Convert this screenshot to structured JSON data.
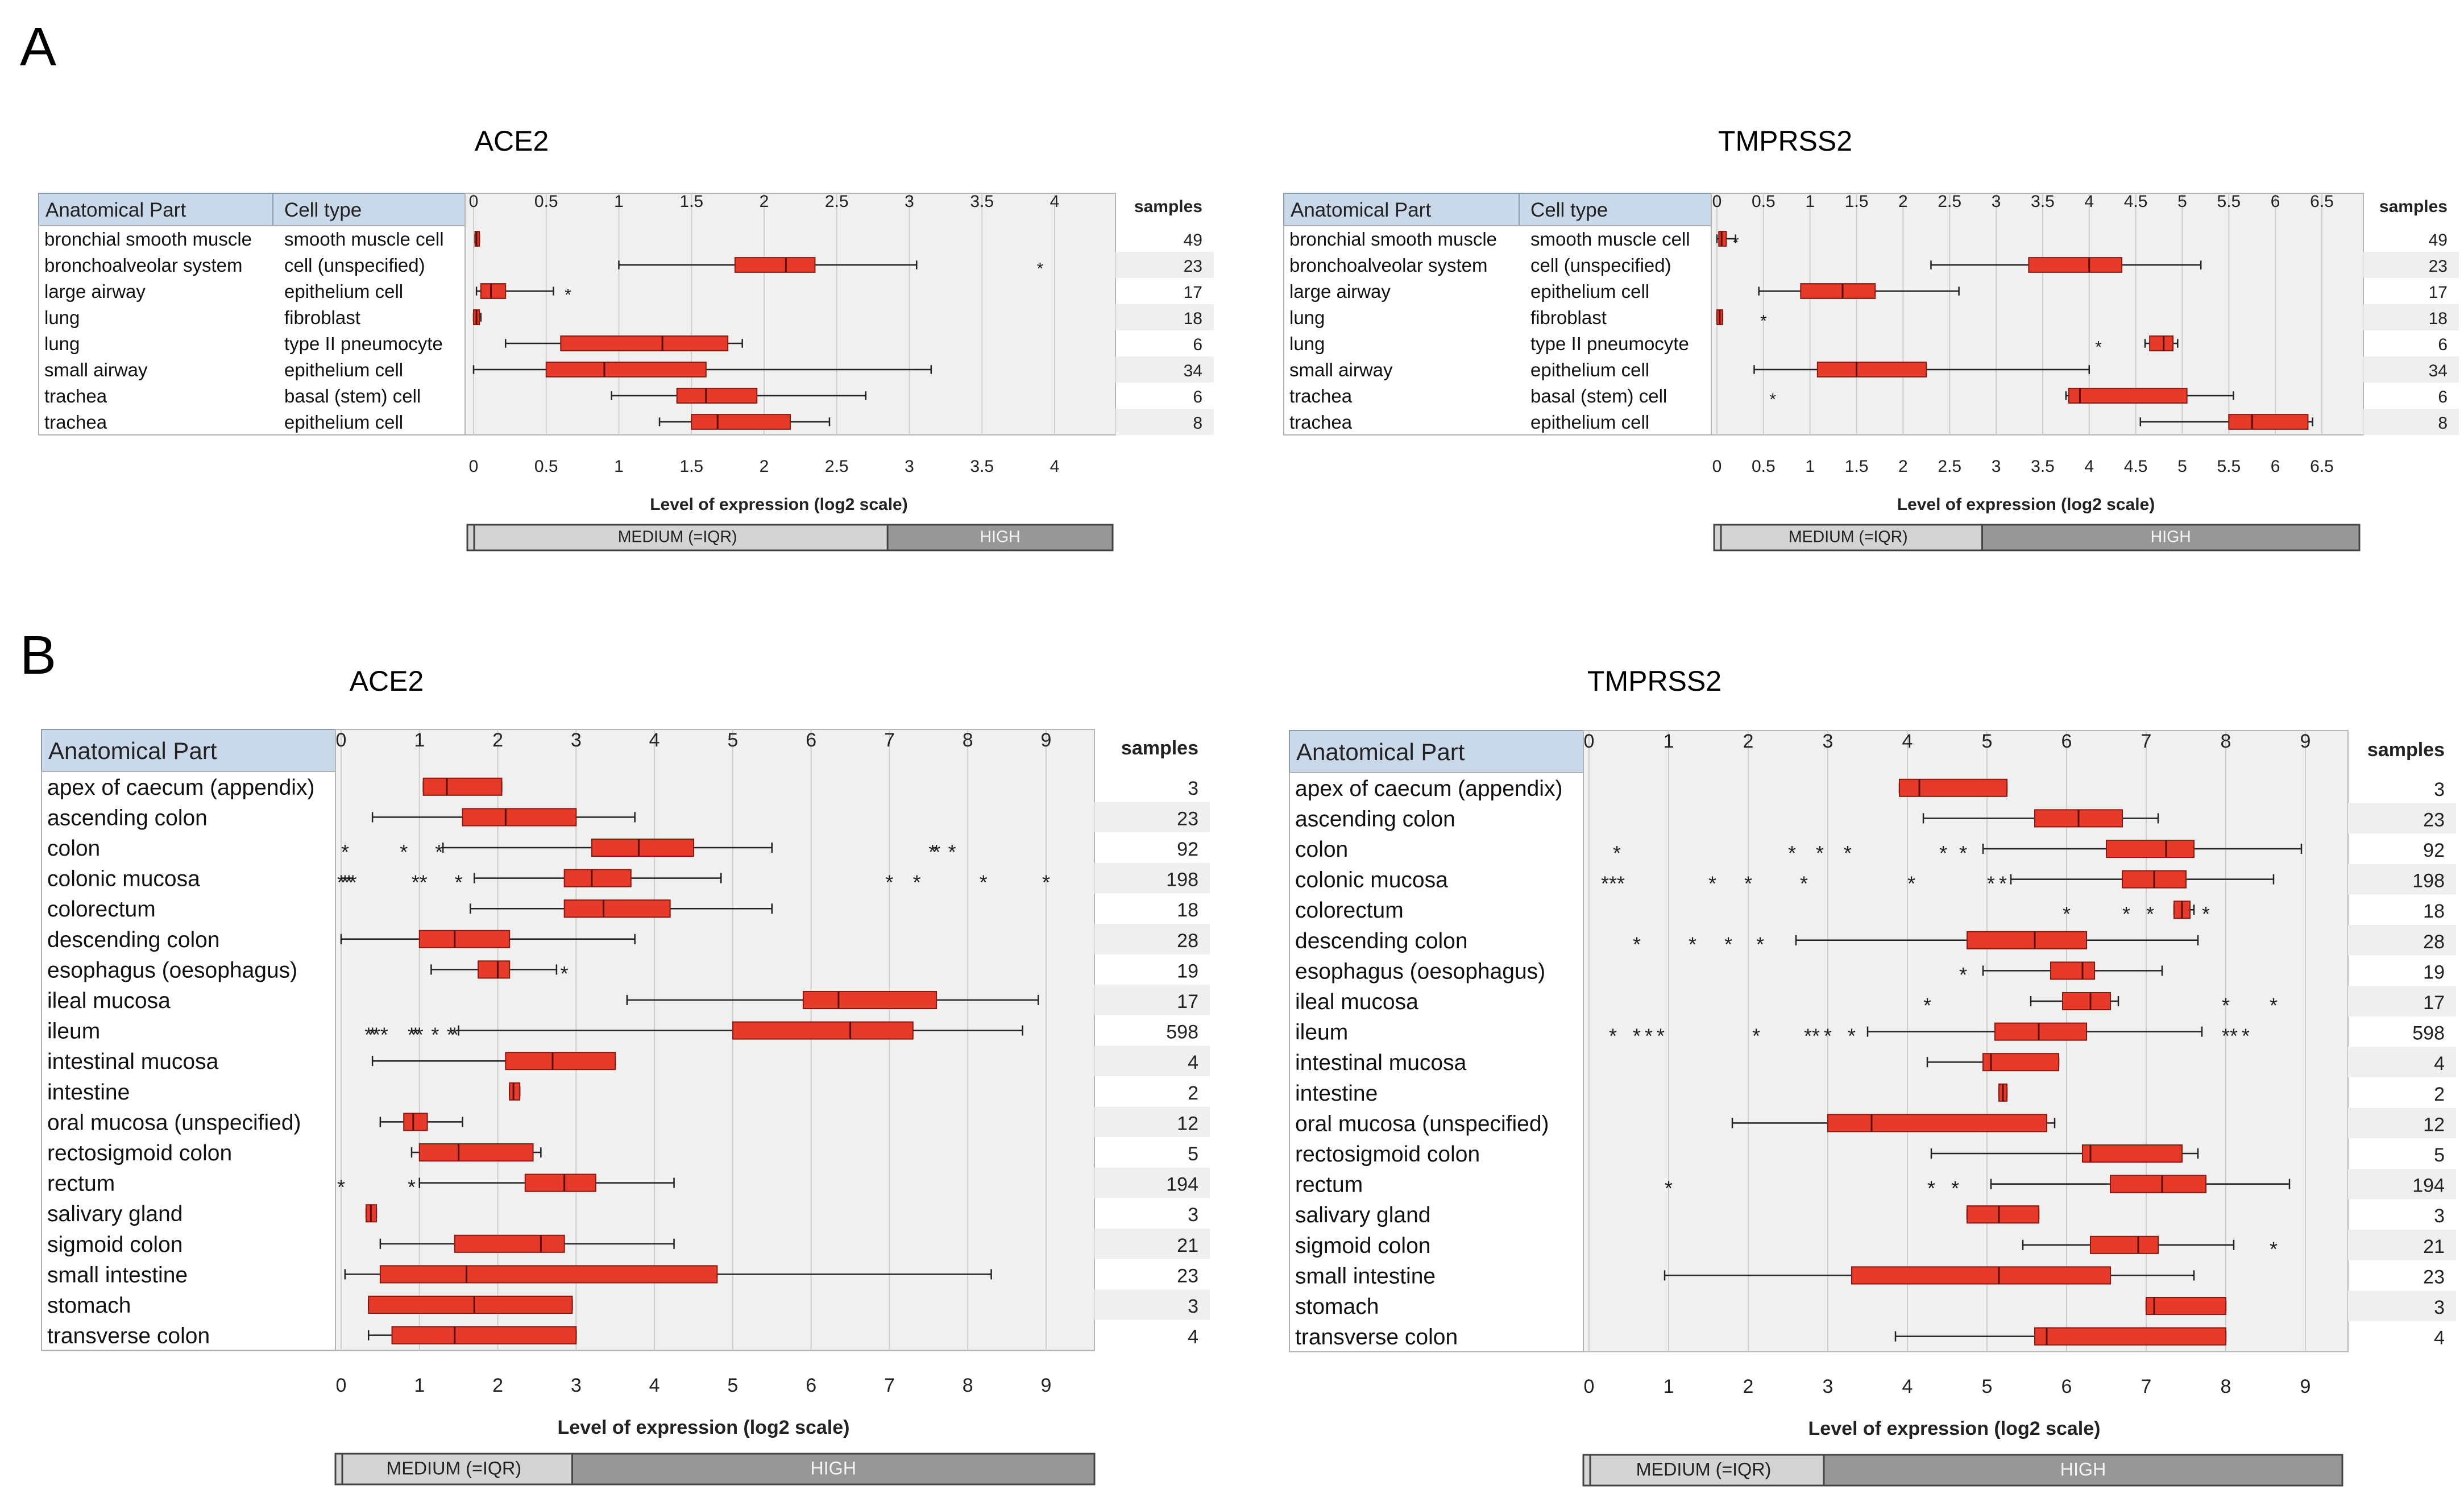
{
  "panel_labels": [
    "A",
    "B"
  ],
  "axis_label": "Level of expression (log2 scale)",
  "samples_label": "samples",
  "legend": {
    "medium": "MEDIUM (=IQR)",
    "high": "HIGH"
  },
  "colors": {
    "box": "#e63a2a",
    "box_stroke": "#8a1a10",
    "plot_bg": "#f0f0f0",
    "header_bg": "#c9d9ea",
    "legend_med": "#d4d4d4",
    "legend_high": "#979797"
  },
  "chart_data": [
    {
      "type": "boxplot",
      "title": "ACE2",
      "xlabel": "Level of expression (log2 scale)",
      "xlim": [
        0,
        4.3
      ],
      "ticks": [
        "0",
        "0.5",
        "1",
        "1.5",
        "2",
        "2.5",
        "3",
        "3.5",
        "4"
      ],
      "columns": [
        "Anatomical Part",
        "Cell type"
      ],
      "legend_split": 2.85,
      "rows": [
        {
          "part": "bronchial smooth muscle",
          "cell": "smooth muscle cell",
          "samples": "49",
          "wmin": 0.01,
          "q1": 0.01,
          "med": 0.02,
          "q3": 0.04,
          "wmax": 0.04,
          "out": []
        },
        {
          "part": "bronchoalveolar system",
          "cell": "cell (unspecified)",
          "samples": "23",
          "wmin": 1.0,
          "q1": 1.8,
          "med": 2.15,
          "q3": 2.35,
          "wmax": 3.05,
          "out": [
            3.9
          ]
        },
        {
          "part": "large airway",
          "cell": "epithelium cell",
          "samples": "17",
          "wmin": 0.02,
          "q1": 0.05,
          "med": 0.12,
          "q3": 0.22,
          "wmax": 0.55,
          "out": [
            0.65
          ]
        },
        {
          "part": "lung",
          "cell": "fibroblast",
          "samples": "18",
          "wmin": 0.0,
          "q1": 0.0,
          "med": 0.02,
          "q3": 0.04,
          "wmax": 0.05,
          "out": []
        },
        {
          "part": "lung",
          "cell": "type II pneumocyte",
          "samples": "6",
          "wmin": 0.22,
          "q1": 0.6,
          "med": 1.3,
          "q3": 1.75,
          "wmax": 1.85,
          "out": []
        },
        {
          "part": "small airway",
          "cell": "epithelium cell",
          "samples": "34",
          "wmin": 0.0,
          "q1": 0.5,
          "med": 0.9,
          "q3": 1.6,
          "wmax": 3.15,
          "out": []
        },
        {
          "part": "trachea",
          "cell": "basal (stem) cell",
          "samples": "6",
          "wmin": 0.95,
          "q1": 1.4,
          "med": 1.6,
          "q3": 1.95,
          "wmax": 2.7,
          "out": []
        },
        {
          "part": "trachea",
          "cell": "epithelium cell",
          "samples": "8",
          "wmin": 1.28,
          "q1": 1.5,
          "med": 1.68,
          "q3": 2.18,
          "wmax": 2.45,
          "out": []
        }
      ]
    },
    {
      "type": "boxplot",
      "title": "TMPRSS2",
      "xlabel": "Level of expression (log2 scale)",
      "xlim": [
        0,
        6.9
      ],
      "ticks": [
        "0",
        "0.5",
        "1",
        "1.5",
        "2",
        "2.5",
        "3",
        "3.5",
        "4",
        "4.5",
        "5",
        "5.5",
        "6",
        "6.5"
      ],
      "columns": [
        "Anatomical Part",
        "Cell type"
      ],
      "legend_split": 2.85,
      "rows": [
        {
          "part": "bronchial smooth muscle",
          "cell": "smooth muscle cell",
          "samples": "49",
          "wmin": 0.0,
          "q1": 0.02,
          "med": 0.05,
          "q3": 0.1,
          "wmax": 0.2,
          "out": [
            0.2
          ]
        },
        {
          "part": "bronchoalveolar system",
          "cell": "cell (unspecified)",
          "samples": "23",
          "wmin": 2.3,
          "q1": 3.35,
          "med": 4.0,
          "q3": 4.35,
          "wmax": 5.2,
          "out": []
        },
        {
          "part": "large airway",
          "cell": "epithelium cell",
          "samples": "17",
          "wmin": 0.45,
          "q1": 0.9,
          "med": 1.35,
          "q3": 1.7,
          "wmax": 2.6,
          "out": []
        },
        {
          "part": "lung",
          "cell": "fibroblast",
          "samples": "18",
          "wmin": 0.0,
          "q1": 0.0,
          "med": 0.03,
          "q3": 0.06,
          "wmax": 0.06,
          "out": [
            0.5
          ]
        },
        {
          "part": "lung",
          "cell": "type II pneumocyte",
          "samples": "6",
          "wmin": 4.6,
          "q1": 4.65,
          "med": 4.8,
          "q3": 4.9,
          "wmax": 4.95,
          "out": [
            4.1
          ]
        },
        {
          "part": "small airway",
          "cell": "epithelium cell",
          "samples": "34",
          "wmin": 0.4,
          "q1": 1.08,
          "med": 1.5,
          "q3": 2.25,
          "wmax": 4.0,
          "out": []
        },
        {
          "part": "trachea",
          "cell": "basal (stem) cell",
          "samples": "6",
          "wmin": 3.75,
          "q1": 3.78,
          "med": 3.9,
          "q3": 5.05,
          "wmax": 5.55,
          "out": [
            0.6
          ]
        },
        {
          "part": "trachea",
          "cell": "epithelium cell",
          "samples": "8",
          "wmin": 4.55,
          "q1": 5.5,
          "med": 5.75,
          "q3": 6.35,
          "wmax": 6.4,
          "out": []
        }
      ]
    },
    {
      "type": "boxplot",
      "title": "ACE2",
      "xlabel": "Level of expression (log2 scale)",
      "xlim": [
        0,
        9.5
      ],
      "ticks": [
        "0",
        "1",
        "2",
        "3",
        "4",
        "5",
        "6",
        "7",
        "8",
        "9"
      ],
      "columns": [
        "Anatomical Part"
      ],
      "legend_split": 2.95,
      "rows": [
        {
          "part": "apex of caecum (appendix)",
          "samples": "3",
          "wmin": 1.05,
          "q1": 1.05,
          "med": 1.35,
          "q3": 2.05,
          "wmax": 2.05,
          "out": []
        },
        {
          "part": "ascending colon",
          "samples": "23",
          "wmin": 0.4,
          "q1": 1.55,
          "med": 2.1,
          "q3": 3.0,
          "wmax": 3.75,
          "out": []
        },
        {
          "part": "colon",
          "samples": "92",
          "wmin": 1.3,
          "q1": 3.2,
          "med": 3.8,
          "q3": 4.5,
          "wmax": 5.5,
          "out": [
            0.05,
            0.8,
            1.25,
            7.55,
            7.6,
            7.8
          ]
        },
        {
          "part": "colonic mucosa",
          "samples": "198",
          "wmin": 1.7,
          "q1": 2.85,
          "med": 3.2,
          "q3": 3.7,
          "wmax": 4.85,
          "out": [
            0.0,
            0.05,
            0.1,
            0.15,
            0.95,
            1.05,
            1.5,
            7.0,
            7.35,
            8.2,
            9.0
          ]
        },
        {
          "part": "colorectum",
          "samples": "18",
          "wmin": 1.65,
          "q1": 2.85,
          "med": 3.35,
          "q3": 4.2,
          "wmax": 5.5,
          "out": []
        },
        {
          "part": "descending colon",
          "samples": "28",
          "wmin": 0.0,
          "q1": 1.0,
          "med": 1.45,
          "q3": 2.15,
          "wmax": 3.75,
          "out": []
        },
        {
          "part": "esophagus (oesophagus)",
          "samples": "19",
          "wmin": 1.15,
          "q1": 1.75,
          "med": 2.0,
          "q3": 2.15,
          "wmax": 2.75,
          "out": [
            2.85
          ]
        },
        {
          "part": "ileal mucosa",
          "samples": "17",
          "wmin": 3.65,
          "q1": 5.9,
          "med": 6.35,
          "q3": 7.6,
          "wmax": 8.9,
          "out": []
        },
        {
          "part": "ileum",
          "samples": "598",
          "wmin": 1.5,
          "q1": 5.0,
          "med": 6.5,
          "q3": 7.3,
          "wmax": 8.7,
          "out": [
            0.35,
            0.4,
            0.45,
            0.55,
            0.9,
            0.95,
            1.0,
            1.2,
            1.4,
            1.45
          ]
        },
        {
          "part": "intestinal mucosa",
          "samples": "4",
          "wmin": 0.4,
          "q1": 2.1,
          "med": 2.7,
          "q3": 3.5,
          "wmax": 3.5,
          "out": []
        },
        {
          "part": "intestine",
          "samples": "2",
          "wmin": 2.15,
          "q1": 2.15,
          "med": 2.2,
          "q3": 2.28,
          "wmax": 2.28,
          "out": []
        },
        {
          "part": "oral mucosa (unspecified)",
          "samples": "12",
          "wmin": 0.5,
          "q1": 0.8,
          "med": 0.92,
          "q3": 1.1,
          "wmax": 1.55,
          "out": []
        },
        {
          "part": "rectosigmoid colon",
          "samples": "5",
          "wmin": 0.9,
          "q1": 1.0,
          "med": 1.5,
          "q3": 2.45,
          "wmax": 2.55,
          "out": []
        },
        {
          "part": "rectum",
          "samples": "194",
          "wmin": 1.0,
          "q1": 2.35,
          "med": 2.85,
          "q3": 3.25,
          "wmax": 4.25,
          "out": [
            0.0,
            0.9
          ]
        },
        {
          "part": "salivary gland",
          "samples": "3",
          "wmin": 0.32,
          "q1": 0.32,
          "med": 0.38,
          "q3": 0.45,
          "wmax": 0.45,
          "out": []
        },
        {
          "part": "sigmoid colon",
          "samples": "21",
          "wmin": 0.5,
          "q1": 1.45,
          "med": 2.55,
          "q3": 2.85,
          "wmax": 4.25,
          "out": []
        },
        {
          "part": "small intestine",
          "samples": "23",
          "wmin": 0.05,
          "q1": 0.5,
          "med": 1.6,
          "q3": 4.8,
          "wmax": 8.3,
          "out": []
        },
        {
          "part": "stomach",
          "samples": "3",
          "wmin": 0.35,
          "q1": 0.35,
          "med": 1.7,
          "q3": 2.95,
          "wmax": 2.95,
          "out": []
        },
        {
          "part": "transverse colon",
          "samples": "4",
          "wmin": 0.35,
          "q1": 0.65,
          "med": 1.45,
          "q3": 3.0,
          "wmax": 3.0,
          "out": []
        }
      ]
    },
    {
      "type": "boxplot",
      "title": "TMPRSS2",
      "xlabel": "Level of expression (log2 scale)",
      "xlim": [
        0,
        9.5
      ],
      "ticks": [
        "0",
        "1",
        "2",
        "3",
        "4",
        "5",
        "6",
        "7",
        "8",
        "9"
      ],
      "columns": [
        "Anatomical Part"
      ],
      "legend_split": 2.95,
      "rows": [
        {
          "part": "apex of caecum (appendix)",
          "samples": "3",
          "wmin": 3.9,
          "q1": 3.9,
          "med": 4.15,
          "q3": 5.25,
          "wmax": 5.25,
          "out": []
        },
        {
          "part": "ascending colon",
          "samples": "23",
          "wmin": 4.2,
          "q1": 5.6,
          "med": 6.15,
          "q3": 6.7,
          "wmax": 7.15,
          "out": []
        },
        {
          "part": "colon",
          "samples": "92",
          "wmin": 4.95,
          "q1": 6.5,
          "med": 7.25,
          "q3": 7.6,
          "wmax": 8.95,
          "out": [
            0.35,
            2.55,
            2.9,
            3.25,
            4.45,
            4.7
          ]
        },
        {
          "part": "colonic mucosa",
          "samples": "198",
          "wmin": 5.3,
          "q1": 6.7,
          "med": 7.1,
          "q3": 7.5,
          "wmax": 8.6,
          "out": [
            0.2,
            0.3,
            0.4,
            1.55,
            2.0,
            2.7,
            4.05,
            5.05,
            5.2
          ]
        },
        {
          "part": "colorectum",
          "samples": "18",
          "wmin": 7.35,
          "q1": 7.35,
          "med": 7.45,
          "q3": 7.55,
          "wmax": 7.6,
          "out": [
            6.0,
            6.75,
            7.05,
            7.75
          ]
        },
        {
          "part": "descending colon",
          "samples": "28",
          "wmin": 2.6,
          "q1": 4.75,
          "med": 5.6,
          "q3": 6.25,
          "wmax": 7.65,
          "out": [
            0.6,
            1.3,
            1.75,
            2.15
          ]
        },
        {
          "part": "esophagus (oesophagus)",
          "samples": "19",
          "wmin": 4.95,
          "q1": 5.8,
          "med": 6.2,
          "q3": 6.35,
          "wmax": 7.2,
          "out": [
            4.7
          ]
        },
        {
          "part": "ileal mucosa",
          "samples": "17",
          "wmin": 5.55,
          "q1": 5.95,
          "med": 6.3,
          "q3": 6.55,
          "wmax": 6.65,
          "out": [
            4.25,
            8.0,
            8.6
          ]
        },
        {
          "part": "ileum",
          "samples": "598",
          "wmin": 3.5,
          "q1": 5.1,
          "med": 5.65,
          "q3": 6.25,
          "wmax": 7.7,
          "out": [
            0.3,
            0.6,
            0.75,
            0.9,
            2.1,
            2.75,
            2.85,
            3.0,
            3.3,
            8.0,
            8.1,
            8.25
          ]
        },
        {
          "part": "intestinal mucosa",
          "samples": "4",
          "wmin": 4.25,
          "q1": 4.95,
          "med": 5.05,
          "q3": 5.9,
          "wmax": 5.9,
          "out": []
        },
        {
          "part": "intestine",
          "samples": "2",
          "wmin": 5.15,
          "q1": 5.15,
          "med": 5.2,
          "q3": 5.25,
          "wmax": 5.25,
          "out": []
        },
        {
          "part": "oral mucosa (unspecified)",
          "samples": "12",
          "wmin": 1.8,
          "q1": 3.0,
          "med": 3.55,
          "q3": 5.75,
          "wmax": 5.85,
          "out": []
        },
        {
          "part": "rectosigmoid colon",
          "samples": "5",
          "wmin": 4.3,
          "q1": 6.2,
          "med": 6.3,
          "q3": 7.45,
          "wmax": 7.65,
          "out": []
        },
        {
          "part": "rectum",
          "samples": "194",
          "wmin": 5.05,
          "q1": 6.55,
          "med": 7.2,
          "q3": 7.75,
          "wmax": 8.8,
          "out": [
            1.0,
            4.3,
            4.6
          ]
        },
        {
          "part": "salivary gland",
          "samples": "3",
          "wmin": 4.75,
          "q1": 4.75,
          "med": 5.15,
          "q3": 5.65,
          "wmax": 5.65,
          "out": []
        },
        {
          "part": "sigmoid colon",
          "samples": "21",
          "wmin": 5.45,
          "q1": 6.3,
          "med": 6.9,
          "q3": 7.15,
          "wmax": 8.1,
          "out": [
            8.6
          ]
        },
        {
          "part": "small intestine",
          "samples": "23",
          "wmin": 0.95,
          "q1": 3.3,
          "med": 5.15,
          "q3": 6.55,
          "wmax": 7.6,
          "out": []
        },
        {
          "part": "stomach",
          "samples": "3",
          "wmin": 7.0,
          "q1": 7.0,
          "med": 7.1,
          "q3": 8.0,
          "wmax": 8.0,
          "out": []
        },
        {
          "part": "transverse colon",
          "samples": "4",
          "wmin": 3.85,
          "q1": 5.6,
          "med": 5.75,
          "q3": 8.0,
          "wmax": 8.0,
          "out": []
        }
      ]
    }
  ]
}
